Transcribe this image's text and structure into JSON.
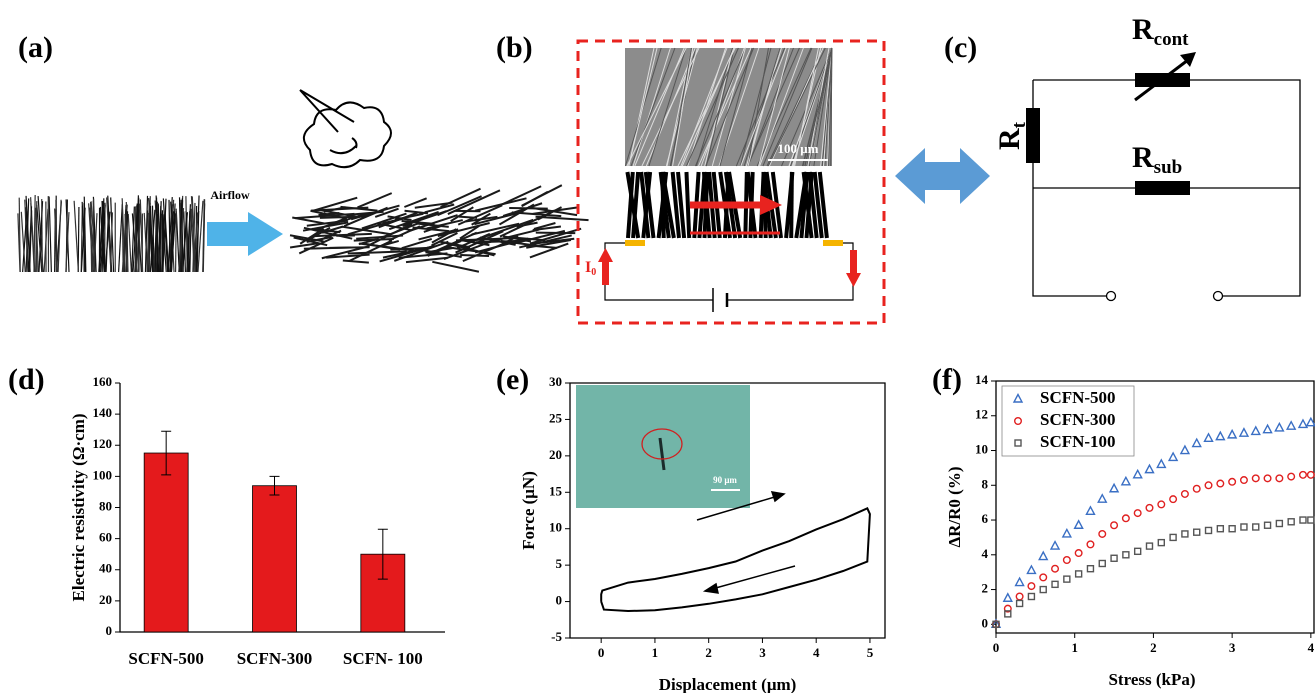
{
  "panel_labels": [
    "(a)",
    "(b)",
    "(c)",
    "(d)",
    "(e)",
    "(f)"
  ],
  "diagram": {
    "airflow": "Airflow",
    "sem_scale": "100 μm",
    "current": {
      "symbol": "I",
      "subscript": "0"
    },
    "r_cont": {
      "symbol": "R",
      "subscript": "cont"
    },
    "r_t": {
      "symbol": "R",
      "subscript": "t"
    },
    "r_sub": {
      "symbol": "R",
      "subscript": "sub"
    }
  },
  "chart_data": [
    {
      "type": "bar",
      "ylabel": "Electric resistivity (Ω·cm)",
      "categories": [
        "SCFN-500",
        "SCFN-300",
        "SCFN- 100"
      ],
      "values": [
        115,
        94,
        50
      ],
      "errors": [
        14,
        6,
        16
      ],
      "color": "#e41a1c",
      "ylim": [
        0,
        160
      ],
      "yticks": [
        0,
        20,
        40,
        60,
        80,
        100,
        120,
        140,
        160
      ]
    },
    {
      "type": "line",
      "xlabel": "Displacement (μm)",
      "ylabel": "Force (μN)",
      "inset_scale": "90 μm",
      "x": [
        0,
        0,
        0.02,
        0.5,
        1,
        1.5,
        2,
        2.5,
        3,
        3.5,
        4,
        4.5,
        4.95,
        5.0,
        4.95,
        4.5,
        4,
        3.5,
        3,
        2.5,
        2,
        1.5,
        1,
        0.5,
        0.05,
        0
      ],
      "values": [
        0,
        1,
        1.5,
        2.6,
        3.1,
        3.8,
        4.6,
        5.5,
        7.0,
        8.3,
        9.9,
        11.3,
        12.8,
        12,
        5.5,
        4.2,
        3.0,
        2.0,
        1.0,
        0.3,
        -0.3,
        -0.8,
        -1.2,
        -1.3,
        -1.1,
        0
      ],
      "color": "#000000",
      "xlim": [
        -0.58,
        5.28
      ],
      "xticks": [
        0,
        1,
        2,
        3,
        4,
        5
      ],
      "ylim": [
        -5,
        30
      ],
      "yticks": [
        -5,
        0,
        5,
        10,
        15,
        20,
        25,
        30
      ]
    },
    {
      "type": "scatter",
      "xlabel": "Stress (kPa)",
      "ylabel": "ΔR/R0 (%)",
      "legend": "upper left",
      "x": [
        0,
        0.15,
        0.3,
        0.45,
        0.6,
        0.75,
        0.9,
        1.05,
        1.2,
        1.35,
        1.5,
        1.65,
        1.8,
        1.95,
        2.1,
        2.25,
        2.4,
        2.55,
        2.7,
        2.85,
        3.0,
        3.15,
        3.3,
        3.45,
        3.6,
        3.75,
        3.9,
        4.0
      ],
      "series": [
        {
          "name": "SCFN-500",
          "color": "#3a6fc4",
          "marker": "triangle",
          "values": [
            0,
            1.5,
            2.4,
            3.1,
            3.9,
            4.5,
            5.2,
            5.7,
            6.5,
            7.2,
            7.8,
            8.2,
            8.6,
            8.9,
            9.2,
            9.6,
            10.0,
            10.4,
            10.7,
            10.8,
            10.9,
            11.0,
            11.1,
            11.2,
            11.3,
            11.4,
            11.5,
            11.6
          ]
        },
        {
          "name": "SCFN-300",
          "color": "#e02020",
          "marker": "circle",
          "values": [
            0,
            0.9,
            1.6,
            2.2,
            2.7,
            3.2,
            3.7,
            4.1,
            4.6,
            5.2,
            5.7,
            6.1,
            6.4,
            6.7,
            6.9,
            7.2,
            7.5,
            7.8,
            8.0,
            8.1,
            8.2,
            8.3,
            8.4,
            8.4,
            8.4,
            8.5,
            8.6,
            8.6
          ]
        },
        {
          "name": "SCFN-100",
          "color": "#555555",
          "marker": "square",
          "values": [
            0,
            0.6,
            1.2,
            1.6,
            2.0,
            2.3,
            2.6,
            2.9,
            3.2,
            3.5,
            3.8,
            4.0,
            4.2,
            4.5,
            4.7,
            5.0,
            5.2,
            5.3,
            5.4,
            5.5,
            5.5,
            5.6,
            5.6,
            5.7,
            5.8,
            5.9,
            6.0,
            6.0
          ]
        }
      ],
      "xlim": [
        0,
        4.04
      ],
      "xticks": [
        0,
        1,
        2,
        3,
        4
      ],
      "ylim": [
        -0.5,
        14
      ],
      "yticks": [
        0,
        2,
        4,
        6,
        8,
        10,
        12,
        14
      ]
    }
  ]
}
